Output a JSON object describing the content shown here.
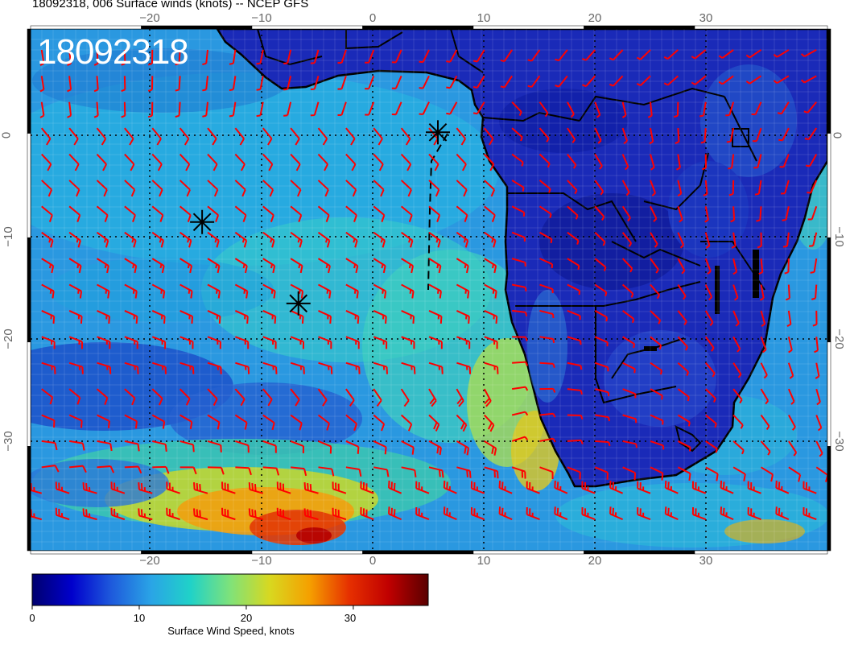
{
  "header": {
    "title": "18092318, 006 Surface winds (knots) -- NCEP GFS",
    "stamp": "18092318"
  },
  "axes": {
    "lon_ticks": [
      "−20",
      "−10",
      "0",
      "10",
      "20",
      "30"
    ],
    "lat_ticks": [
      "0",
      "−10",
      "−20",
      "−30"
    ]
  },
  "colorbar": {
    "title": "Surface Wind Speed, knots",
    "tick_labels": [
      "0",
      "10",
      "20",
      "30"
    ],
    "range": [
      0,
      37
    ],
    "stops": [
      "#00006e",
      "#0000cc",
      "#1e5adc",
      "#2aa4e6",
      "#20d2c8",
      "#7fe27a",
      "#d8d820",
      "#f5a000",
      "#e63000",
      "#c00000",
      "#5a0000"
    ]
  },
  "map": {
    "lon_range": [
      -30,
      42
    ],
    "lat_range": [
      -40,
      10
    ],
    "markers": [
      {
        "name": "storm-marker",
        "lon": -14.5,
        "lat": -8.5
      },
      {
        "name": "storm-marker",
        "lon": -5.8,
        "lat": -16.3
      },
      {
        "name": "storm-marker",
        "lon": 6.8,
        "lat": 0.1
      }
    ],
    "barb_color": "#ff0000"
  }
}
